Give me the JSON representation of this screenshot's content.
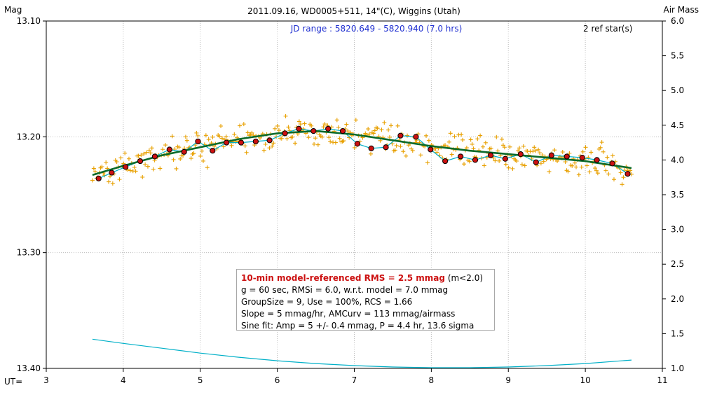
{
  "chart_data": {
    "type": "scatter",
    "title": "2011.09.16, WD0005+511, 14\"(C), Wiggins (Utah)",
    "subtitle": "JD range : 5820.649 - 5820.940 (7.0 hrs)",
    "corner_note": "2 ref star(s)",
    "y_left_label": "Mag",
    "y_right_label": "Air Mass",
    "x_label": "UT=",
    "xlim": [
      3,
      11
    ],
    "ylim_left": [
      13.4,
      13.1
    ],
    "ylim_right": [
      1.0,
      6.0
    ],
    "x_ticks": [
      "3",
      "4",
      "5",
      "6",
      "7",
      "8",
      "9",
      "10",
      "11"
    ],
    "y_left_ticks": [
      "13.10",
      "13.20",
      "13.30",
      "13.40"
    ],
    "y_right_ticks": [
      "6.0",
      "5.5",
      "5.0",
      "4.5",
      "4.0",
      "3.5",
      "3.0",
      "2.5",
      "2.0",
      "1.5",
      "1.0"
    ],
    "grid": true,
    "colors": {
      "raw_points": "#e8a000",
      "binned_points": "#cc1111",
      "smooth_fit": "#00b0c8",
      "model_fit": "#0b6a2a",
      "air_mass": "#00b0c8"
    },
    "binned_points": {
      "x": [
        3.68,
        3.85,
        4.03,
        4.22,
        4.41,
        4.6,
        4.79,
        4.97,
        5.16,
        5.34,
        5.53,
        5.72,
        5.9,
        6.1,
        6.28,
        6.47,
        6.66,
        6.85,
        7.04,
        7.22,
        7.41,
        7.6,
        7.8,
        7.99,
        8.18,
        8.38,
        8.57,
        8.77,
        8.96,
        9.16,
        9.36,
        9.56,
        9.76,
        9.96,
        10.15,
        10.35,
        10.55
      ],
      "y": [
        13.236,
        13.231,
        13.226,
        13.221,
        13.217,
        13.211,
        13.213,
        13.204,
        13.212,
        13.205,
        13.205,
        13.204,
        13.203,
        13.197,
        13.193,
        13.195,
        13.193,
        13.195,
        13.206,
        13.21,
        13.209,
        13.199,
        13.2,
        13.211,
        13.221,
        13.217,
        13.22,
        13.216,
        13.219,
        13.215,
        13.222,
        13.216,
        13.217,
        13.218,
        13.22,
        13.223,
        13.232
      ]
    },
    "model_fit": {
      "x": [
        3.6,
        4.0,
        4.5,
        5.0,
        5.5,
        6.0,
        6.5,
        7.0,
        7.5,
        8.0,
        8.5,
        9.0,
        9.5,
        10.0,
        10.6
      ],
      "y": [
        13.233,
        13.225,
        13.216,
        13.209,
        13.202,
        13.197,
        13.195,
        13.198,
        13.203,
        13.208,
        13.212,
        13.215,
        13.218,
        13.221,
        13.227
      ]
    },
    "air_mass": {
      "x": [
        3.6,
        4.0,
        4.5,
        5.0,
        5.5,
        6.0,
        6.5,
        7.0,
        7.5,
        8.0,
        8.5,
        9.0,
        9.5,
        10.0,
        10.6
      ],
      "y": [
        1.42,
        1.36,
        1.29,
        1.22,
        1.16,
        1.11,
        1.07,
        1.04,
        1.02,
        1.01,
        1.01,
        1.02,
        1.04,
        1.07,
        1.12
      ]
    }
  },
  "stats": {
    "headline": "10-min model-referenced RMS = 2.5 mmag",
    "headline_note": "(m<2.0)",
    "line2": "g = 60 sec, RMSi = 6.0, w.r.t. model = 7.0 mmag",
    "line3": "GroupSize = 9, Use = 100%, RCS = 1.66",
    "line4": "Slope = 5 mmag/hr, AMCurv = 113 mmag/airmass",
    "line5": "Sine fit: Amp = 5 +/- 0.4 mmag, P = 4.4 hr, 13.6 sigma"
  }
}
